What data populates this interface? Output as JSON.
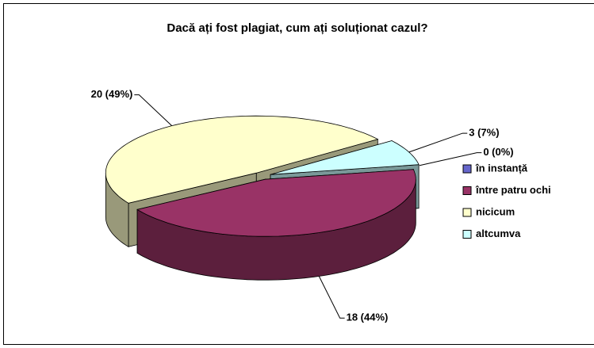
{
  "chart_data": {
    "type": "pie",
    "title": "Dacă ați fost plagiat, cum ați soluționat cazul?",
    "categories": [
      "în instanță",
      "între patru ochi",
      "nicicum",
      "altcumva"
    ],
    "values": [
      0,
      18,
      20,
      3
    ],
    "value_labels": [
      "0 (0%)",
      "18 (44%)",
      "20 (49%)",
      "3 (7%)"
    ],
    "colors": [
      "#6666cc",
      "#993366",
      "#ffffcc",
      "#ccffff"
    ],
    "legend": "right",
    "three_d": true
  }
}
